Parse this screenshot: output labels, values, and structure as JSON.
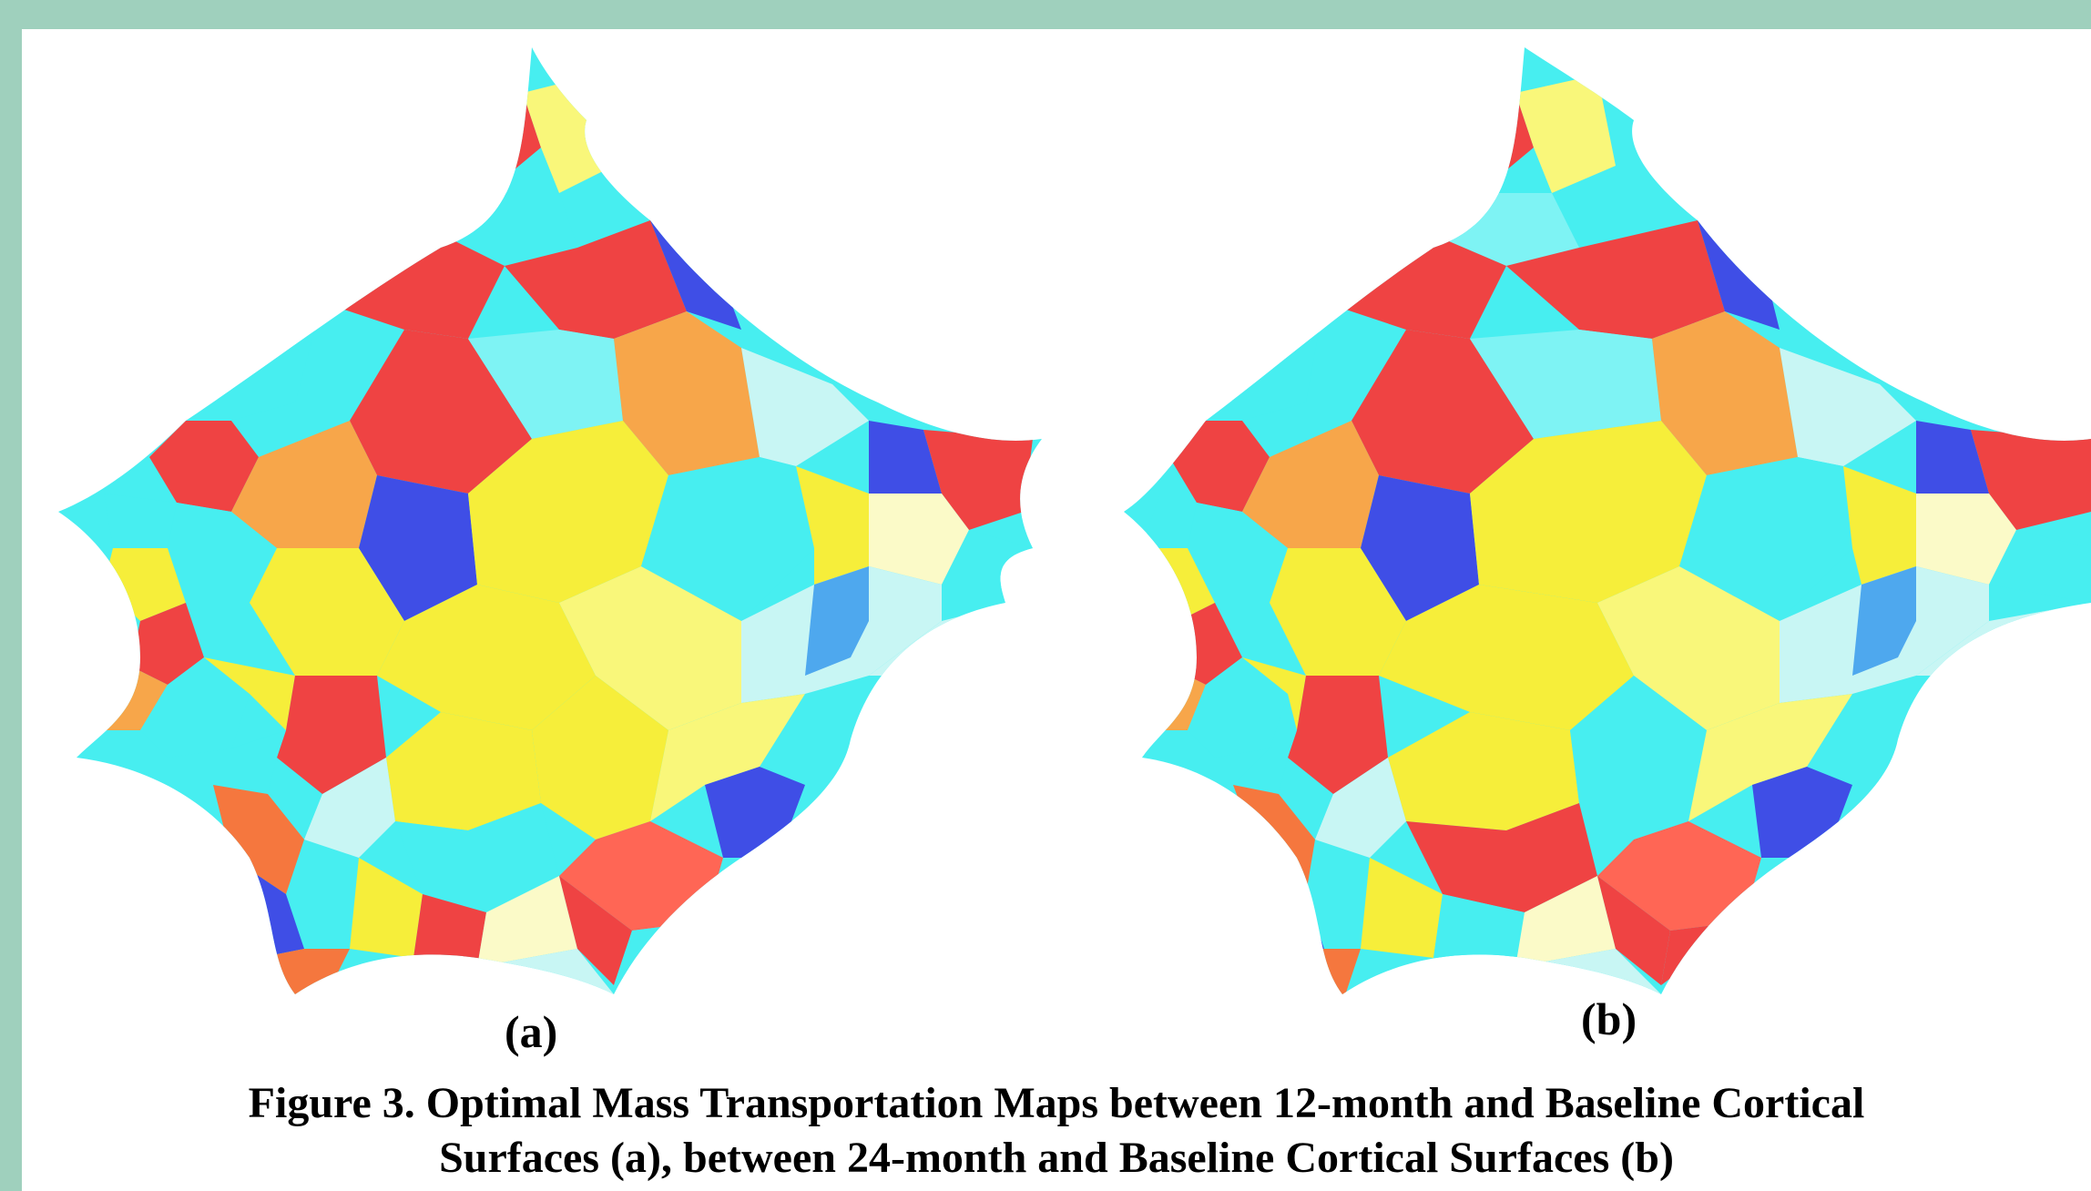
{
  "figure": {
    "label_a": "(a)",
    "label_b": "(b)",
    "caption_line1": "Figure 3. Optimal Mass Transportation Maps between 12-month and Baseline Cortical",
    "caption_line2": "Surfaces (a), between 24-month and Baseline Cortical Surfaces (b)"
  },
  "colors": {
    "slide_background": "#9fd0bd",
    "panel_background": "#ffffff",
    "palette": [
      "#ef4343",
      "#f7a64a",
      "#f6ee3a",
      "#f9f77a",
      "#fbfac8",
      "#47eef0",
      "#7ef3f4",
      "#c8f6f4",
      "#4ea8ee",
      "#3f4ee6",
      "#f5773e",
      "#ff6655"
    ]
  }
}
